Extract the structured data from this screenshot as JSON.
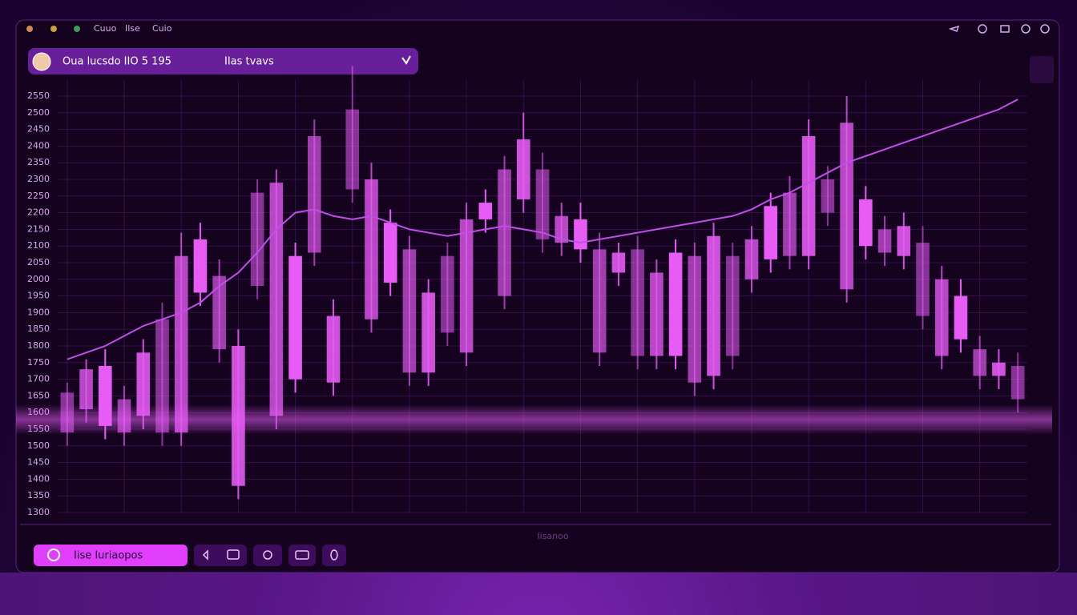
{
  "ui": {
    "menu": [
      "Cuuo",
      "Ilse",
      "Cuio"
    ],
    "header_title": "Oua lucsdo IIO 5 195",
    "header_sub": "IIas tvavs",
    "action_button": "Iise Iuriaopos",
    "footer_text": "Iisanoo"
  },
  "chart_data": {
    "type": "candlestick",
    "color": "#e65cf5",
    "ylim": [
      1300,
      2550
    ],
    "yticks": [
      2550,
      2500,
      2450,
      2400,
      2350,
      2300,
      2250,
      2200,
      2150,
      2100,
      2050,
      2000,
      1950,
      1900,
      1850,
      1800,
      1750,
      1700,
      1650,
      1600,
      1550,
      1500,
      1450,
      1400,
      1350,
      1300
    ],
    "grid": true,
    "open": [
      1540,
      1610,
      1560,
      1540,
      1590,
      1540,
      1540,
      1960,
      1790,
      1380,
      1980,
      1590,
      1700,
      2080,
      1690,
      2270,
      1880,
      1990,
      1720,
      1720,
      1840,
      1780,
      2180,
      1950,
      2240,
      2120,
      2110,
      2090,
      1780,
      2020,
      1770,
      1770,
      1770,
      1690,
      1710,
      1770,
      2000,
      2060,
      2070,
      2070,
      2200,
      1970,
      2100,
      2080,
      2070,
      1890,
      1770,
      1820,
      1710,
      1710,
      1640
    ],
    "close": [
      1660,
      1730,
      1740,
      1640,
      1780,
      1880,
      2070,
      2120,
      2010,
      1800,
      2260,
      2290,
      2070,
      2430,
      1890,
      2510,
      2300,
      2170,
      2090,
      1960,
      2070,
      2180,
      2230,
      2330,
      2420,
      2330,
      2190,
      2180,
      2090,
      2080,
      2090,
      2020,
      2080,
      2070,
      2130,
      2070,
      2120,
      2220,
      2260,
      2430,
      2300,
      2470,
      2240,
      2150,
      2160,
      2110,
      2000,
      1950,
      1790,
      1750,
      1740
    ],
    "high": [
      1690,
      1760,
      1790,
      1680,
      1820,
      1930,
      2140,
      2170,
      2060,
      1850,
      2300,
      2330,
      2110,
      2480,
      1940,
      2640,
      2350,
      2210,
      2130,
      2000,
      2110,
      2230,
      2270,
      2370,
      2500,
      2380,
      2230,
      2230,
      2140,
      2110,
      2130,
      2060,
      2120,
      2110,
      2170,
      2110,
      2160,
      2260,
      2310,
      2480,
      2340,
      2550,
      2280,
      2190,
      2200,
      2160,
      2040,
      2000,
      1830,
      1790,
      1780
    ],
    "low": [
      1500,
      1570,
      1520,
      1500,
      1550,
      1500,
      1500,
      1920,
      1750,
      1340,
      1940,
      1550,
      1660,
      2040,
      1650,
      2230,
      1840,
      1950,
      1680,
      1680,
      1800,
      1740,
      2140,
      1910,
      2200,
      2080,
      2070,
      2050,
      1740,
      1980,
      1730,
      1730,
      1730,
      1650,
      1670,
      1730,
      1960,
      2020,
      2030,
      2030,
      2160,
      1930,
      2060,
      2040,
      2030,
      1850,
      1730,
      1780,
      1670,
      1670,
      1600
    ],
    "line": {
      "color": "#c04ee8",
      "values": [
        1760,
        1780,
        1800,
        1830,
        1860,
        1880,
        1900,
        1930,
        1980,
        2020,
        2080,
        2150,
        2200,
        2210,
        2190,
        2180,
        2190,
        2170,
        2150,
        2140,
        2130,
        2140,
        2150,
        2160,
        2150,
        2140,
        2120,
        2110,
        2120,
        2130,
        2140,
        2150,
        2160,
        2170,
        2180,
        2190,
        2210,
        2240,
        2260,
        2290,
        2320,
        2350,
        2370,
        2390,
        2410,
        2430,
        2450,
        2470,
        2490,
        2510,
        2540
      ]
    }
  }
}
